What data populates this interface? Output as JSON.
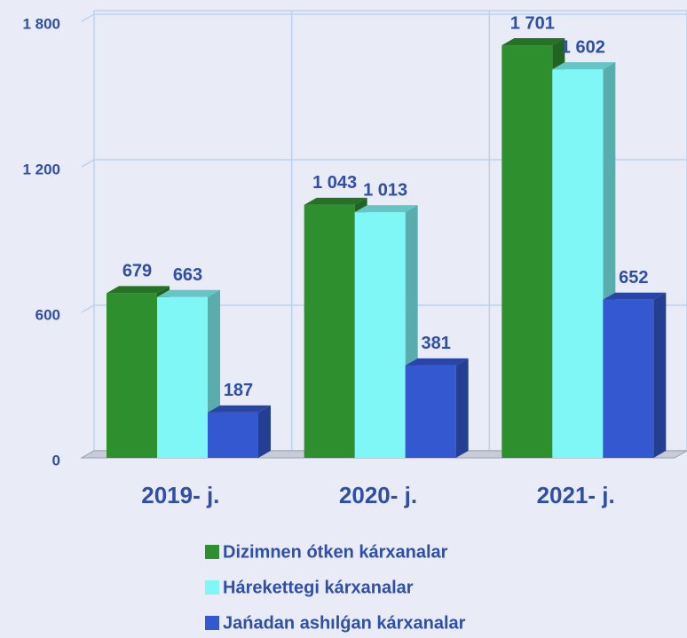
{
  "chart_data": {
    "type": "bar",
    "categories": [
      "2019- j.",
      "2020- j.",
      "2021- j."
    ],
    "series": [
      {
        "name": "Dizimnen ótken kárxanalar",
        "color": "#2e8f2e",
        "values": [
          679,
          1043,
          1701
        ],
        "value_labels": [
          "679",
          "1 043",
          "1 701"
        ]
      },
      {
        "name": "Hárekettegi kárxanalar",
        "color": "#7ff7f7",
        "values": [
          663,
          1013,
          1602
        ],
        "value_labels": [
          "663",
          "1 013",
          "1 602"
        ]
      },
      {
        "name": "Jańadan ashılǵan kárxanalar",
        "color": "#3358d0",
        "values": [
          187,
          381,
          652
        ],
        "value_labels": [
          "187",
          "381",
          "652"
        ]
      }
    ],
    "ylim": [
      0,
      1800
    ],
    "yticks": [
      0,
      600,
      {
        "value": 1200,
        "label": "1 200"
      },
      {
        "value": 1800,
        "label": "1 800"
      }
    ],
    "grid": true
  }
}
